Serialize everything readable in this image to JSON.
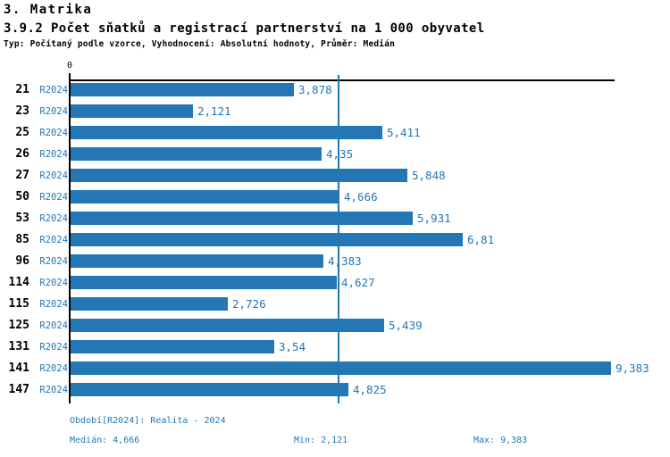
{
  "header": {
    "title": "3. Matrika",
    "subtitle": "3.9.2 Počet sňatků a registrací partnerství na 1 000 obyvatel",
    "meta": "Typ: Počítaný podle vzorce, Vyhodnocení: Absolutní hodnoty, Průměr: Medián"
  },
  "axis": {
    "zero_label": "0"
  },
  "colors": {
    "bar": "#2277b4",
    "accent_text": "#2277b4",
    "axis": "#000000"
  },
  "rows": [
    {
      "id": "21",
      "period": "R2024",
      "value": 3.878,
      "value_label": "3,878"
    },
    {
      "id": "23",
      "period": "R2024",
      "value": 2.121,
      "value_label": "2,121"
    },
    {
      "id": "25",
      "period": "R2024",
      "value": 5.411,
      "value_label": "5,411"
    },
    {
      "id": "26",
      "period": "R2024",
      "value": 4.35,
      "value_label": "4,35"
    },
    {
      "id": "27",
      "period": "R2024",
      "value": 5.848,
      "value_label": "5,848"
    },
    {
      "id": "50",
      "period": "R2024",
      "value": 4.666,
      "value_label": "4,666"
    },
    {
      "id": "53",
      "period": "R2024",
      "value": 5.931,
      "value_label": "5,931"
    },
    {
      "id": "85",
      "period": "R2024",
      "value": 6.81,
      "value_label": "6,81"
    },
    {
      "id": "96",
      "period": "R2024",
      "value": 4.383,
      "value_label": "4,383"
    },
    {
      "id": "114",
      "period": "R2024",
      "value": 4.627,
      "value_label": "4,627"
    },
    {
      "id": "115",
      "period": "R2024",
      "value": 2.726,
      "value_label": "2,726"
    },
    {
      "id": "125",
      "period": "R2024",
      "value": 5.439,
      "value_label": "5,439"
    },
    {
      "id": "131",
      "period": "R2024",
      "value": 3.54,
      "value_label": "3,54"
    },
    {
      "id": "141",
      "period": "R2024",
      "value": 9.383,
      "value_label": "9,383"
    },
    {
      "id": "147",
      "period": "R2024",
      "value": 4.825,
      "value_label": "4,825"
    }
  ],
  "footer": {
    "period_line": "Období[R2024]: Realita - 2024",
    "median": "Medián: 4,666",
    "min": "Min: 2,121",
    "max": "Max: 9,383"
  },
  "chart_data": {
    "type": "bar",
    "orientation": "horizontal",
    "title": "3.9.2 Počet sňatků a registrací partnerství na 1 000 obyvatel",
    "categories": [
      "21",
      "23",
      "25",
      "26",
      "27",
      "50",
      "53",
      "85",
      "96",
      "114",
      "115",
      "125",
      "131",
      "141",
      "147"
    ],
    "series": [
      {
        "name": "R2024",
        "values": [
          3.878,
          2.121,
          5.411,
          4.35,
          5.848,
          4.666,
          5.931,
          6.81,
          4.383,
          4.627,
          2.726,
          5.439,
          3.54,
          9.383,
          4.825
        ]
      }
    ],
    "value_labels": [
      "3,878",
      "2,121",
      "5,411",
      "4,35",
      "5,848",
      "4,666",
      "5,931",
      "6,81",
      "4,383",
      "4,627",
      "2,726",
      "5,439",
      "3,54",
      "9,383",
      "4,825"
    ],
    "xlabel": "",
    "ylabel": "",
    "xlim": [
      0,
      9.45
    ],
    "x_ticks": [
      "0"
    ],
    "median_line": 4.666,
    "grid": false,
    "legend_position": "none",
    "stats": {
      "median": 4.666,
      "min": 2.121,
      "max": 9.383
    }
  }
}
